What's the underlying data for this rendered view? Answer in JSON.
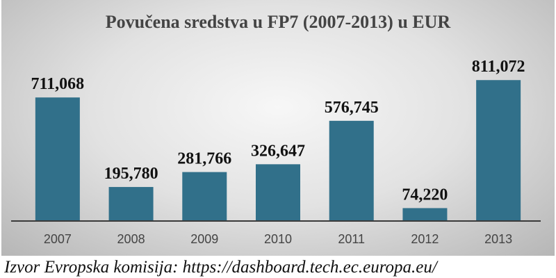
{
  "chart_data": {
    "type": "bar",
    "title": "Povučena sredstva u FP7 (2007-2013) u EUR",
    "categories": [
      "2007",
      "2008",
      "2009",
      "2010",
      "2011",
      "2012",
      "2013"
    ],
    "values": [
      711068,
      195780,
      281766,
      326647,
      576745,
      74220,
      811072
    ],
    "value_labels": [
      "711,068",
      "195,780",
      "281,766",
      "326,647",
      "576,745",
      "74,220",
      "811,072"
    ],
    "xlabel": "",
    "ylabel": "",
    "ylim": [
      0,
      900000
    ],
    "grid": false,
    "legend": "none",
    "bar_color": "#31708a"
  },
  "source": "Izvor Evropska komisija: https://dashboard.tech.ec.europa.eu/"
}
